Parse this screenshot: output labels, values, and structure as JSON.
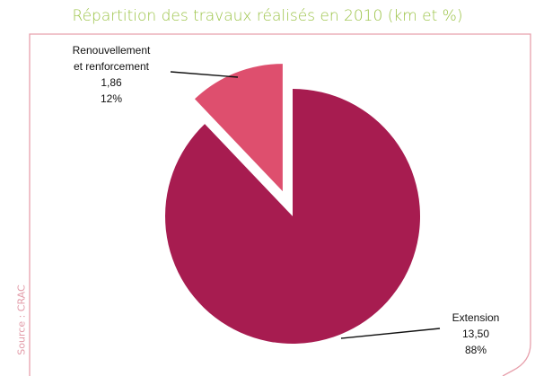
{
  "title": "Répartition des travaux réalisés en 2010 (km et %)",
  "source": "Source : CRAC",
  "colors": {
    "title": "#9bc346",
    "frame": "#e7a0ac",
    "source": "#e29aa7"
  },
  "chart_data": {
    "type": "pie",
    "title": "Répartition des travaux réalisés en 2010 (km et %)",
    "unit": "km",
    "slices": [
      {
        "name": "Extension",
        "label_lines": [
          "Extension"
        ],
        "value_text": "13,50",
        "percent_text": "88%",
        "value": 13.5,
        "percent": 88,
        "color": "#a71c50",
        "exploded": false
      },
      {
        "name": "Renouvellement et renforcement",
        "label_lines": [
          "Renouvellement",
          "et renforcement"
        ],
        "value_text": "1,86",
        "percent_text": "12%",
        "value": 1.86,
        "percent": 12,
        "color": "#de4f6e",
        "exploded": true
      }
    ],
    "legend": "none",
    "start": "12 o'clock, clockwise"
  }
}
